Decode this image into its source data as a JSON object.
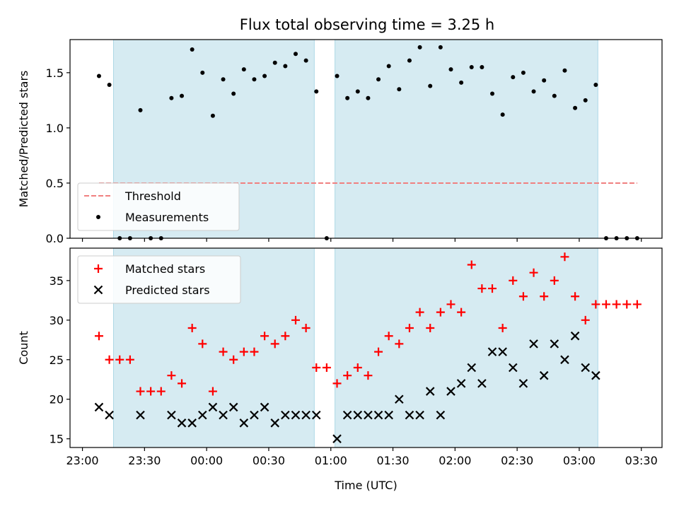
{
  "title": "Flux total observing time = 3.25 h",
  "colors": {
    "shade": "#add8e6",
    "threshold": "#f08080",
    "measurement": "#000000",
    "matched": "#ff0000",
    "predicted": "#000000"
  },
  "chart_data": [
    {
      "type": "scatter",
      "ylabel": "Matched/Predicted stars",
      "ylim": [
        0,
        1.8
      ],
      "yticks": [
        "0.0",
        "0.5",
        "1.0",
        "1.5"
      ],
      "xlim": [
        "22:54",
        "03:40"
      ],
      "legend_position": "lower-left",
      "shaded_intervals": [
        [
          "23:15",
          "00:52"
        ],
        [
          "01:02",
          "03:09"
        ]
      ],
      "series": [
        {
          "name": "Threshold",
          "style": "dashed-line",
          "x": [
            "23:08",
            "03:28"
          ],
          "y": [
            0.5,
            0.5
          ]
        },
        {
          "name": "Measurements",
          "style": "dot",
          "x": [
            "23:08",
            "23:13",
            "23:18",
            "23:23",
            "23:28",
            "23:33",
            "23:38",
            "23:43",
            "23:48",
            "23:53",
            "23:58",
            "00:03",
            "00:08",
            "00:13",
            "00:18",
            "00:23",
            "00:28",
            "00:33",
            "00:38",
            "00:43",
            "00:48",
            "00:53",
            "00:58",
            "01:03",
            "01:08",
            "01:13",
            "01:18",
            "01:23",
            "01:28",
            "01:33",
            "01:38",
            "01:43",
            "01:48",
            "01:53",
            "01:58",
            "02:03",
            "02:08",
            "02:13",
            "02:18",
            "02:23",
            "02:28",
            "02:33",
            "02:38",
            "02:43",
            "02:48",
            "02:53",
            "02:58",
            "03:03",
            "03:08",
            "03:13",
            "03:18",
            "03:23",
            "03:28"
          ],
          "y": [
            1.47,
            1.39,
            0.0,
            0.0,
            1.16,
            0.0,
            0.0,
            1.27,
            1.29,
            1.71,
            1.5,
            1.11,
            1.44,
            1.31,
            1.53,
            1.44,
            1.47,
            1.59,
            1.56,
            1.67,
            1.61,
            1.33,
            0.0,
            1.47,
            1.27,
            1.33,
            1.27,
            1.44,
            1.56,
            1.35,
            1.61,
            1.73,
            1.38,
            1.73,
            1.53,
            1.41,
            1.55,
            1.55,
            1.31,
            1.12,
            1.46,
            1.5,
            1.33,
            1.43,
            1.29,
            1.52,
            1.18,
            1.25,
            1.39,
            0.0,
            0.0,
            0.0,
            0.0
          ]
        }
      ]
    },
    {
      "type": "scatter",
      "xlabel": "Time (UTC)",
      "ylabel": "Count",
      "ylim": [
        13.9,
        39.1
      ],
      "yticks": [
        "15",
        "20",
        "25",
        "30",
        "35"
      ],
      "xlim": [
        "22:54",
        "03:40"
      ],
      "xticks": [
        "23:00",
        "23:30",
        "00:00",
        "00:30",
        "01:00",
        "01:30",
        "02:00",
        "02:30",
        "03:00",
        "03:30"
      ],
      "legend_position": "upper-left",
      "shaded_intervals": [
        [
          "23:15",
          "00:52"
        ],
        [
          "01:02",
          "03:09"
        ]
      ],
      "series": [
        {
          "name": "Matched stars",
          "marker": "plus",
          "x": [
            "23:08",
            "23:13",
            "23:18",
            "23:23",
            "23:28",
            "23:33",
            "23:38",
            "23:43",
            "23:48",
            "23:53",
            "23:58",
            "00:03",
            "00:08",
            "00:13",
            "00:18",
            "00:23",
            "00:28",
            "00:33",
            "00:38",
            "00:43",
            "00:48",
            "00:53",
            "00:58",
            "01:03",
            "01:08",
            "01:13",
            "01:18",
            "01:23",
            "01:28",
            "01:33",
            "01:38",
            "01:43",
            "01:48",
            "01:53",
            "01:58",
            "02:03",
            "02:08",
            "02:13",
            "02:18",
            "02:23",
            "02:28",
            "02:33",
            "02:38",
            "02:43",
            "02:48",
            "02:53",
            "02:58",
            "03:03",
            "03:08",
            "03:13",
            "03:18",
            "03:23",
            "03:28"
          ],
          "y": [
            28,
            25,
            25,
            25,
            21,
            21,
            21,
            23,
            22,
            29,
            27,
            21,
            26,
            25,
            26,
            26,
            28,
            27,
            28,
            30,
            29,
            24,
            24,
            22,
            23,
            24,
            23,
            26,
            28,
            27,
            29,
            31,
            29,
            31,
            32,
            31,
            37,
            34,
            34,
            29,
            35,
            33,
            36,
            33,
            35,
            38,
            33,
            30,
            32,
            32,
            32,
            32,
            32
          ]
        },
        {
          "name": "Predicted stars",
          "marker": "x",
          "x": [
            "23:08",
            "23:13",
            "23:28",
            "23:43",
            "23:48",
            "23:53",
            "23:58",
            "00:03",
            "00:08",
            "00:13",
            "00:18",
            "00:23",
            "00:28",
            "00:33",
            "00:38",
            "00:43",
            "00:48",
            "00:53",
            "01:03",
            "01:08",
            "01:13",
            "01:18",
            "01:23",
            "01:28",
            "01:33",
            "01:38",
            "01:43",
            "01:48",
            "01:53",
            "01:58",
            "02:03",
            "02:08",
            "02:13",
            "02:18",
            "02:23",
            "02:28",
            "02:33",
            "02:38",
            "02:43",
            "02:48",
            "02:53",
            "02:58",
            "03:03",
            "03:08"
          ],
          "y": [
            19,
            18,
            18,
            18,
            17,
            17,
            18,
            19,
            18,
            19,
            17,
            18,
            19,
            17,
            18,
            18,
            18,
            18,
            15,
            18,
            18,
            18,
            18,
            18,
            20,
            18,
            18,
            21,
            18,
            21,
            22,
            24,
            22,
            26,
            26,
            24,
            22,
            27,
            23,
            27,
            25,
            28,
            24,
            23
          ]
        }
      ]
    }
  ]
}
